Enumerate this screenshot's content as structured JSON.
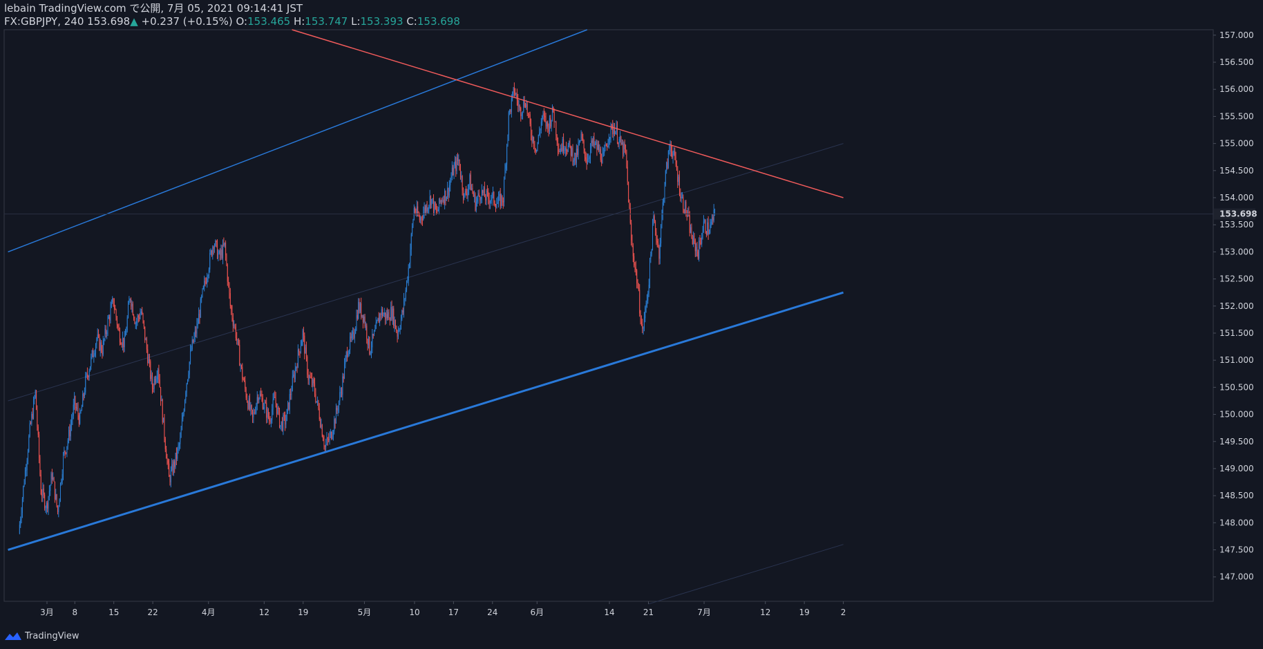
{
  "header": {
    "publisher_line": "lebain TradingView.com で公開, 7月 05, 2021 09:14:41 JST",
    "symbol": "FX:GBPJPY, 240",
    "last": "153.698",
    "change_arrow": "▲",
    "change": "+0.237 (+0.15%)",
    "o_label": "O:",
    "o_value": "153.465",
    "h_label": "H:",
    "h_value": "153.747",
    "l_label": "L:",
    "l_value": "153.393",
    "c_label": "C:",
    "c_value": "153.698"
  },
  "footer": {
    "brand": "TradingView"
  },
  "colors": {
    "background": "#131722",
    "up": "#2962ff",
    "up_candle": "#2a7fd4",
    "down_candle": "#ef5350",
    "trend_blue": "#2979d9",
    "trend_red": "#f15b5b",
    "axis_text": "#d1d4dc",
    "grid": "#1e2433"
  },
  "chart_data": {
    "type": "candlestick",
    "symbol": "FX:GBPJPY",
    "interval": "240",
    "y_ticks": [
      "157.000",
      "156.500",
      "156.000",
      "155.500",
      "155.000",
      "154.500",
      "154.000",
      "153.500",
      "153.000",
      "152.500",
      "152.000",
      "151.500",
      "151.000",
      "150.500",
      "150.000",
      "149.500",
      "149.000",
      "148.500",
      "148.000",
      "147.500",
      "147.000"
    ],
    "ylim": [
      146.55,
      157.1
    ],
    "x_ticks": [
      {
        "label": "3月",
        "day": 0
      },
      {
        "label": "8",
        "day": 5
      },
      {
        "label": "15",
        "day": 12
      },
      {
        "label": "22",
        "day": 19
      },
      {
        "label": "4月",
        "day": 29
      },
      {
        "label": "12",
        "day": 39
      },
      {
        "label": "19",
        "day": 46
      },
      {
        "label": "5月",
        "day": 57
      },
      {
        "label": "10",
        "day": 66
      },
      {
        "label": "17",
        "day": 73
      },
      {
        "label": "24",
        "day": 80
      },
      {
        "label": "6月",
        "day": 88
      },
      {
        "label": "14",
        "day": 101
      },
      {
        "label": "21",
        "day": 108
      },
      {
        "label": "7月",
        "day": 118
      },
      {
        "label": "12",
        "day": 129
      },
      {
        "label": "19",
        "day": 136
      },
      {
        "label": "2",
        "day": 143
      }
    ],
    "current_price": "153.698",
    "price_path": [
      [
        -5,
        147.8
      ],
      [
        -4,
        148.8
      ],
      [
        -3,
        149.7
      ],
      [
        -2,
        150.4
      ],
      [
        -1,
        148.6
      ],
      [
        0,
        148.3
      ],
      [
        1,
        148.9
      ],
      [
        2,
        148.2
      ],
      [
        3,
        149.2
      ],
      [
        4,
        149.6
      ],
      [
        5,
        150.2
      ],
      [
        6,
        149.9
      ],
      [
        7,
        150.6
      ],
      [
        8,
        151.0
      ],
      [
        9,
        151.4
      ],
      [
        10,
        151.2
      ],
      [
        11,
        151.7
      ],
      [
        12,
        152.1
      ],
      [
        13,
        151.5
      ],
      [
        14,
        151.3
      ],
      [
        15,
        152.2
      ],
      [
        16,
        151.7
      ],
      [
        17,
        151.9
      ],
      [
        18,
        151.2
      ],
      [
        19,
        150.5
      ],
      [
        20,
        150.9
      ],
      [
        21,
        149.8
      ],
      [
        22,
        148.8
      ],
      [
        23,
        149.1
      ],
      [
        24,
        149.5
      ],
      [
        25,
        150.5
      ],
      [
        26,
        151.2
      ],
      [
        27,
        151.6
      ],
      [
        28,
        152.2
      ],
      [
        29,
        152.7
      ],
      [
        30,
        153.2
      ],
      [
        31,
        152.9
      ],
      [
        32,
        153.1
      ],
      [
        33,
        152.0
      ],
      [
        34,
        151.5
      ],
      [
        35,
        150.8
      ],
      [
        36,
        150.3
      ],
      [
        37,
        149.9
      ],
      [
        38,
        150.4
      ],
      [
        39,
        150.2
      ],
      [
        40,
        149.9
      ],
      [
        41,
        150.3
      ],
      [
        42,
        149.8
      ],
      [
        43,
        149.9
      ],
      [
        44,
        150.5
      ],
      [
        45,
        151.0
      ],
      [
        46,
        151.5
      ],
      [
        47,
        150.7
      ],
      [
        48,
        150.5
      ],
      [
        49,
        150.0
      ],
      [
        50,
        149.4
      ],
      [
        51,
        149.6
      ],
      [
        52,
        150.0
      ],
      [
        53,
        150.5
      ],
      [
        54,
        151.2
      ],
      [
        55,
        151.4
      ],
      [
        56,
        152.0
      ],
      [
        57,
        151.8
      ],
      [
        58,
        151.2
      ],
      [
        59,
        151.5
      ],
      [
        60,
        151.9
      ],
      [
        61,
        151.8
      ],
      [
        62,
        151.9
      ],
      [
        63,
        151.5
      ],
      [
        64,
        151.9
      ],
      [
        65,
        152.7
      ],
      [
        66,
        153.8
      ],
      [
        67,
        153.6
      ],
      [
        68,
        153.8
      ],
      [
        69,
        154.0
      ],
      [
        70,
        153.7
      ],
      [
        71,
        154.0
      ],
      [
        72,
        154.1
      ],
      [
        73,
        154.5
      ],
      [
        74,
        154.7
      ],
      [
        75,
        154.0
      ],
      [
        76,
        154.3
      ],
      [
        77,
        153.9
      ],
      [
        78,
        154.1
      ],
      [
        79,
        154.0
      ],
      [
        80,
        154.0
      ],
      [
        81,
        153.9
      ],
      [
        82,
        154.0
      ],
      [
        83,
        155.5
      ],
      [
        84,
        156.0
      ],
      [
        85,
        155.6
      ],
      [
        86,
        155.8
      ],
      [
        87,
        155.2
      ],
      [
        88,
        154.9
      ],
      [
        89,
        155.5
      ],
      [
        90,
        155.3
      ],
      [
        91,
        155.6
      ],
      [
        92,
        154.9
      ],
      [
        93,
        155.0
      ],
      [
        94,
        154.9
      ],
      [
        95,
        154.7
      ],
      [
        96,
        155.1
      ],
      [
        97,
        154.7
      ],
      [
        98,
        155.0
      ],
      [
        99,
        154.9
      ],
      [
        100,
        154.7
      ],
      [
        101,
        155.2
      ],
      [
        102,
        155.3
      ],
      [
        103,
        155.0
      ],
      [
        104,
        154.8
      ],
      [
        105,
        153.2
      ],
      [
        106,
        152.5
      ],
      [
        107,
        151.5
      ],
      [
        108,
        152.3
      ],
      [
        109,
        153.6
      ],
      [
        110,
        153.0
      ],
      [
        111,
        154.3
      ],
      [
        112,
        155.0
      ],
      [
        113,
        154.6
      ],
      [
        114,
        154.0
      ],
      [
        115,
        153.7
      ],
      [
        116,
        153.2
      ],
      [
        117,
        153.0
      ],
      [
        118,
        153.5
      ],
      [
        119,
        153.4
      ],
      [
        120,
        153.7
      ]
    ],
    "trendlines": [
      {
        "color_key": "trend_blue",
        "points": [
          [
            -7,
            153.0
          ],
          [
            97,
            157.1
          ]
        ],
        "width": 1.5
      },
      {
        "color_key": "trend_blue",
        "points": [
          [
            -7,
            147.5
          ],
          [
            143,
            152.25
          ]
        ],
        "width": 3
      },
      {
        "color_key": "trend_red",
        "points": [
          [
            44,
            157.1
          ],
          [
            143,
            154.0
          ]
        ],
        "width": 1.5
      }
    ],
    "guides": [
      {
        "points": [
          [
            -7,
            150.25
          ],
          [
            143,
            155.0
          ]
        ]
      },
      {
        "points": [
          [
            108,
            146.5
          ],
          [
            143,
            147.6
          ]
        ]
      }
    ]
  }
}
